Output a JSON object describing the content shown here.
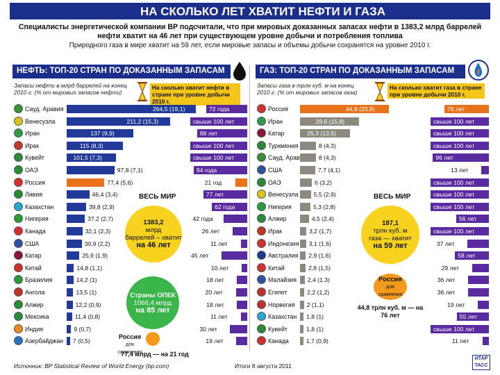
{
  "title": "НА СКОЛЬКО ЛЕТ ХВАТИТ НЕФТИ И ГАЗА",
  "intro": {
    "line1": "Специалисты энергетической компании BP подсчитали, что при мировых доказанных запасах нефти в 1383,2 млрд баррелей",
    "line2": "нефти хватит на 46 лет при существующем уровне добычи и потребления топлива",
    "line3": "Природного газа в мире хватит на 59 лет, если мировые запасы и объемы добычи сохранятся на уровне 2010 г."
  },
  "colors": {
    "brand": "#1c2e8c",
    "accent_bar": "#213a9a",
    "russia": "#e8731a",
    "years": "#5a2aa0",
    "gas_bar": "#8c8a80"
  },
  "oil": {
    "header": "НЕФТЬ: ТОП-20 СТРАН ПО ДОКАЗАННЫМ ЗАПАСАМ",
    "col_reserves": "Запасы нефти в млрд баррелей на конец 2010 г. (% от мировых запасов нефти)",
    "col_years": "На сколько хватит нефти в стране при уровне добычи 2010 г.",
    "world_label": "ВЕСЬ МИР",
    "world_circle": {
      "value": "1383,2",
      "unit": "млрд",
      "text": "баррелей – хватит",
      "years": "на 46 лет"
    },
    "opec_circle": {
      "title": "Страны ОПЕК",
      "value": "1066,4 млрд",
      "years": "на 85 лет"
    },
    "russia_note": {
      "name": "Россия",
      "small": "для сравнения",
      "text": "77,4 млрд — на 21 год"
    }
  },
  "gas": {
    "header": "ГАЗ: ТОП-20 СТРАН ПО ДОКАЗАННЫМ ЗАПАСАМ",
    "col_reserves": "Запасы газа в трлн куб. м на конец 2010 г. (% от мировых запасов газа)",
    "col_years": "На сколько хватит газа в стране при уровне добычи 2010 г.",
    "world_label": "ВЕСЬ МИР",
    "world_circle": {
      "value": "187,1",
      "unit": "трлн куб. м",
      "text": "газа — хватит",
      "years": "на 59 лет"
    },
    "russia_circle": {
      "name": "Россия",
      "small": "для сравнения"
    },
    "russia_note": "44,8 трлн куб. м — на 76 лет"
  },
  "chart_data": [
    {
      "type": "bar",
      "title": "НЕФТЬ: ТОП-20 СТРАН ПО ДОКАЗАННЫМ ЗАПАСАМ",
      "categories": [
        "Сауд. Аравия",
        "Венесуэла",
        "Иран",
        "Ирак",
        "Кувейт",
        "ОАЭ",
        "Россия",
        "Ливия",
        "Казахстан",
        "Нигерия",
        "Канада",
        "США",
        "Катар",
        "Китай",
        "Бразилия",
        "Ангола",
        "Алжир",
        "Мексика",
        "Индия",
        "Азербайджан"
      ],
      "values": [
        264.5,
        211.2,
        137,
        115,
        101.5,
        97.8,
        77.4,
        46.4,
        39.8,
        37.2,
        32.1,
        30.9,
        25.9,
        14.8,
        14.2,
        13.5,
        12.2,
        11.4,
        9,
        7
      ],
      "value_labels": [
        "264,5 (19,1)",
        "211,2 (15,3)",
        "137 (9,9)",
        "115 (8,3)",
        "101,5 (7,3)",
        "97,8 (7,1)",
        "77,4 (5,6)",
        "46,4 (3,4)",
        "39,8 (2,9)",
        "37,2 (2,7)",
        "32,1 (2,3)",
        "30,9 (2,2)",
        "25,9 (1,9)",
        "14,8 (1,1)",
        "14,2 (1)",
        "13,5 (1)",
        "12,2 (0,9)",
        "11,4 (0,8)",
        "9 (0,7)",
        "7 (0,5)"
      ],
      "years": [
        72,
        100,
        88,
        100,
        100,
        94,
        21,
        77,
        62,
        42,
        26,
        11,
        45,
        10,
        18,
        20,
        18,
        11,
        30,
        19
      ],
      "years_labels": [
        "72 года",
        "свыше 100 лет",
        "88 лет",
        "свыше 100 лет",
        "свыше 100 лет",
        "94 года",
        "21 год",
        "77 лет",
        "62 года",
        "42 года",
        "26 лет",
        "11 лет",
        "45 лет",
        "10 лет",
        "18 лет",
        "20 лет",
        "18 лет",
        "11 лет",
        "30 лет",
        "19 лет"
      ],
      "xlabel": "",
      "ylabel": "млрд баррелей",
      "ylim": [
        0,
        264.5
      ]
    },
    {
      "type": "bar",
      "title": "ГАЗ: ТОП-20 СТРАН ПО ДОКАЗАННЫМ ЗАПАСАМ",
      "categories": [
        "Россия",
        "Иран",
        "Катар",
        "Туркмения",
        "Сауд. Аравия",
        "США",
        "ОАЭ",
        "Венесуэла",
        "Нигерия",
        "Алжир",
        "Ирак",
        "Индонезия",
        "Австралия",
        "Китай",
        "Малайзия",
        "Египет",
        "Норвегия",
        "Казахстан",
        "Кувейт",
        "Канада"
      ],
      "values": [
        44.8,
        29.6,
        25.3,
        8,
        8,
        7.7,
        6,
        5.5,
        5.3,
        4.5,
        3.2,
        3.1,
        2.9,
        2.8,
        2.4,
        2.2,
        2,
        1.8,
        1.8,
        1.7
      ],
      "value_labels": [
        "44,8 (23,9)",
        "29,6 (15,8)",
        "25,3 (13,5)",
        "8 (4,3)",
        "8 (4,3)",
        "7,7 (4,1)",
        "6 (3,2)",
        "5,5 (2,9)",
        "5,3 (2,8)",
        "4,5 (2,4)",
        "3,2 (1,7)",
        "3,1 (1,6)",
        "2,9 (1,6)",
        "2,8 (1,5)",
        "2,4 (1,3)",
        "2,2 (1,2)",
        "2 (1,1)",
        "1,8 (1)",
        "1,8 (1)",
        "1,7 (0,9)"
      ],
      "years": [
        76,
        100,
        100,
        100,
        96,
        13,
        100,
        100,
        100,
        56,
        100,
        37,
        58,
        29,
        36,
        36,
        19,
        55,
        100,
        11
      ],
      "years_labels": [
        "76 лет",
        "свыше 100 лет",
        "свыше 100 лет",
        "свыше 100 лет",
        "96 лет",
        "13 лет",
        "свыше 100 лет",
        "свыше 100 лет",
        "свыше 100 лет",
        "56 лет",
        "свыше 100 лет",
        "37 лет",
        "58 лет",
        "29 лет",
        "36 лет",
        "36 лет",
        "19 лет",
        "55 лет",
        "свыше 100 лет",
        "11 лет"
      ],
      "xlabel": "",
      "ylabel": "трлн куб. м",
      "ylim": [
        0,
        44.8
      ]
    }
  ],
  "footer": {
    "source": "Источник: BP Statistical Review of World Energy (bp.com)",
    "date": "Итоги 8 августа 2011",
    "logo": "ИТАР ТАСС"
  }
}
